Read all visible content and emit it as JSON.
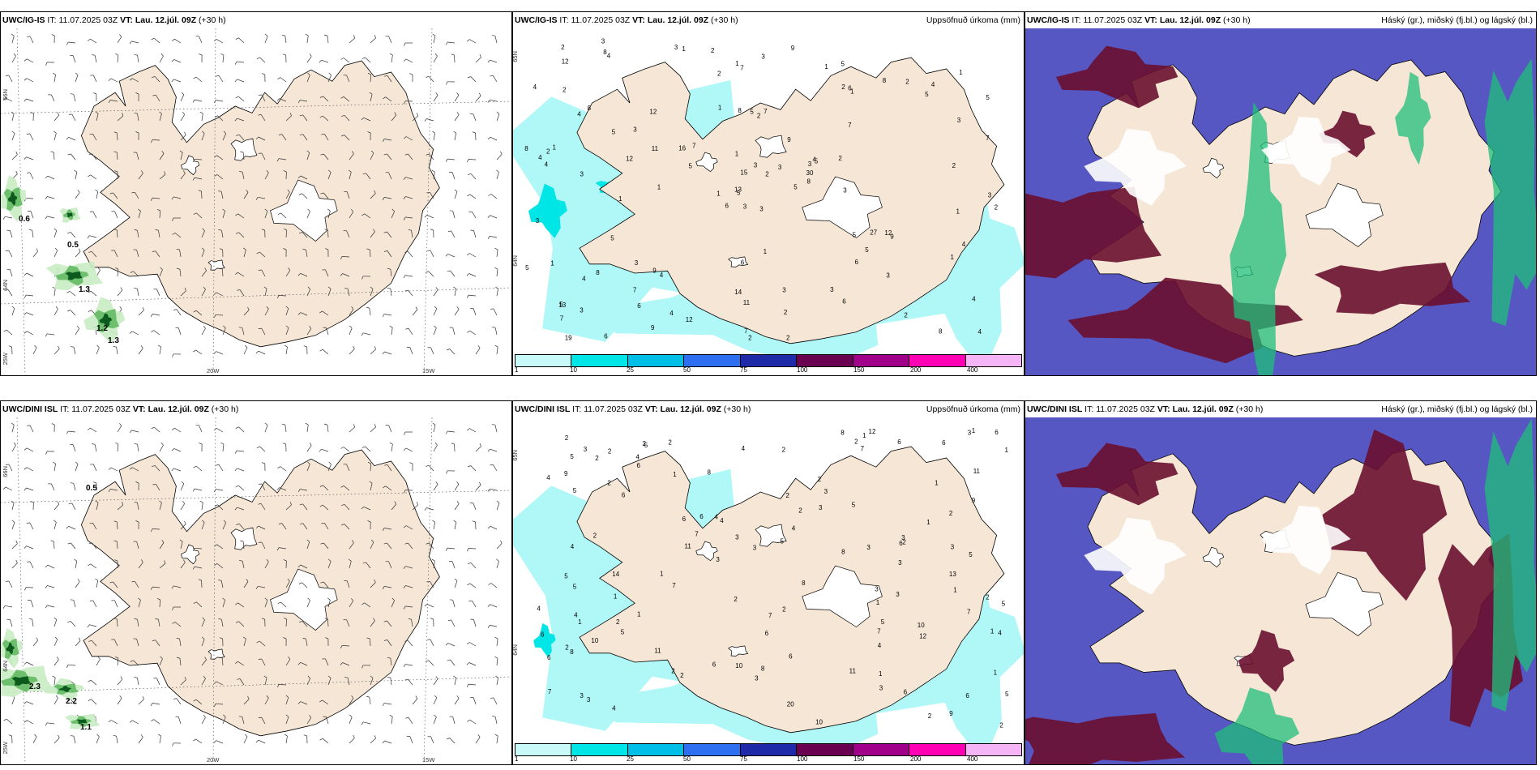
{
  "top_row": {
    "wind": {
      "model": "UWC/IG-IS",
      "it_label": "IT:",
      "it_value": "11.07.2025 03Z",
      "vt_label": "VT:",
      "vt_value": "Lau. 12.júl. 09Z",
      "lead": "(+30 h)",
      "contour_labels": [
        "0.6",
        "0.5",
        "1.3",
        "1.2",
        "1.3"
      ],
      "lat_labels": [
        "66N",
        "64N"
      ],
      "lon_labels": [
        "25W",
        "20W",
        "15W"
      ]
    },
    "precip": {
      "model": "UWC/IG-IS",
      "it_label": "IT:",
      "it_value": "11.07.2025 03Z",
      "vt_label": "VT:",
      "vt_value": "Lau. 12.júl. 09Z",
      "lead": "(+30 h)",
      "field_title": "Uppsöfnuð úrkoma (mm)",
      "values": [
        "3",
        "4",
        "5",
        "5",
        "3",
        "4",
        "5",
        "7",
        "6",
        "5",
        "4",
        "4",
        "3",
        "5",
        "6",
        "7",
        "6",
        "8",
        "9",
        "8",
        "7",
        "7",
        "6",
        "5",
        "5",
        "9",
        "8",
        "7",
        "4",
        "5",
        "7",
        "13",
        "14",
        "15",
        "12",
        "8",
        "9",
        "8",
        "4",
        "12",
        "9",
        "16",
        "12",
        "6",
        "9",
        "8",
        "30",
        "19",
        "11",
        "8",
        "4",
        "3",
        "4",
        "5",
        "6",
        "7",
        "8",
        "2",
        "3",
        "4",
        "3",
        "1",
        "1",
        "3",
        "2",
        "3",
        "1",
        "2",
        "3",
        "5",
        "6",
        "12",
        "27",
        "11",
        "13",
        "12",
        "5",
        "3",
        "1",
        "2",
        "3",
        "3",
        "3",
        "4",
        "7",
        "2",
        "1",
        "2",
        "2",
        "3",
        "1",
        "2",
        "2",
        "3",
        "2",
        "1",
        "2",
        "2",
        "2",
        "1",
        "1",
        "3",
        "3",
        "4",
        "5",
        "3",
        "4",
        "4",
        "5",
        "5",
        "1",
        "2",
        "2",
        "1",
        "1",
        "1",
        "3",
        "1",
        "1",
        "2"
      ],
      "lat_labels": [
        "65N",
        "64N"
      ],
      "legend_ticks": [
        "1",
        "10",
        "25",
        "50",
        "75",
        "100",
        "150",
        "200",
        "400"
      ]
    },
    "cloud": {
      "model": "UWC/IG-IS",
      "it_label": "IT:",
      "it_value": "11.07.2025 03Z",
      "vt_label": "VT:",
      "vt_value": "Lau. 12.júl. 09Z",
      "lead": "(+30 h)",
      "field_title": "Háský (gr.), miðský (fj.bl.) og lágský (bl.)"
    }
  },
  "bottom_row": {
    "wind": {
      "model": "UWC/DINI ISL",
      "it_label": "IT:",
      "it_value": "11.07.2025 03Z",
      "vt_label": "VT:",
      "vt_value": "Lau. 12.júl. 09Z",
      "lead": "(+30 h)",
      "contour_labels": [
        "0.5",
        "2.3",
        "2.2",
        "1.1"
      ],
      "lat_labels": [
        "66N",
        "64N"
      ],
      "lon_labels": [
        "25W",
        "20W",
        "15W"
      ]
    },
    "precip": {
      "model": "UWC/DINI ISL",
      "it_label": "IT:",
      "it_value": "11.07.2025 03Z",
      "vt_label": "VT:",
      "vt_value": "Lau. 12.júl. 09Z",
      "lead": "(+30 h)",
      "field_title": "Uppsöfnuð úrkoma (mm)",
      "values": [
        "1",
        "1",
        "3",
        "5",
        "4",
        "6",
        "8",
        "7",
        "6",
        "10",
        "9",
        "5",
        "5",
        "6",
        "6",
        "5",
        "7",
        "8",
        "4",
        "5",
        "6",
        "6",
        "11",
        "7",
        "8",
        "4",
        "5",
        "5",
        "6",
        "3",
        "20",
        "11",
        "7",
        "7",
        "13",
        "12",
        "7",
        "14",
        "8",
        "10",
        "11",
        "12",
        "9",
        "10",
        "10",
        "11",
        "6",
        "3",
        "8",
        "4",
        "5",
        "6",
        "3",
        "3",
        "4",
        "2",
        "5",
        "2",
        "1",
        "2",
        "3",
        "1",
        "4",
        "4",
        "2",
        "2",
        "2",
        "2",
        "1",
        "2",
        "3",
        "2",
        "3",
        "2",
        "5",
        "1",
        "1",
        "2",
        "2",
        "1",
        "1",
        "2",
        "2",
        "1",
        "3",
        "2",
        "2",
        "3",
        "1",
        "2",
        "1",
        "3",
        "4",
        "4",
        "3",
        "5",
        "6",
        "7",
        "6",
        "6",
        "6",
        "4",
        "5",
        "8",
        "2",
        "2",
        "4",
        "4",
        "3",
        "2",
        "1",
        "1",
        "1",
        "2",
        "3",
        "9",
        "3",
        "3",
        "2",
        "6",
        "6",
        "3",
        "2"
      ],
      "lat_labels": [
        "65N",
        "64N"
      ],
      "legend_ticks": [
        "1",
        "10",
        "25",
        "50",
        "75",
        "100",
        "150",
        "200",
        "400"
      ]
    },
    "cloud": {
      "model": "UWC/DINI ISL",
      "it_label": "IT:",
      "it_value": "11.07.2025 03Z",
      "vt_label": "VT:",
      "vt_value": "Lau. 12.júl. 09Z",
      "lead": "(+30 h)",
      "field_title": "Háský (gr.), miðský (fj.bl.) og lágský (bl.)"
    }
  },
  "colors": {
    "land": "#f5e6d6",
    "sea": "#ffffff",
    "precip_light": "#b0f7f7",
    "precip_mid": "#00e5e5",
    "wind_green_light": "#c9ecc4",
    "wind_green_mid": "#6dbf6d",
    "wind_green_dark": "#0c5a1e",
    "cloud_high": "#6a1030",
    "cloud_mid": "#3a3ab8",
    "cloud_low": "#1fbf7a",
    "legend": [
      "#c8fafa",
      "#00e6e6",
      "#00bfe6",
      "#2d6ff0",
      "#1e2aa8",
      "#6a0050",
      "#a0008a",
      "#ff00b4",
      "#f5b4f5"
    ]
  }
}
